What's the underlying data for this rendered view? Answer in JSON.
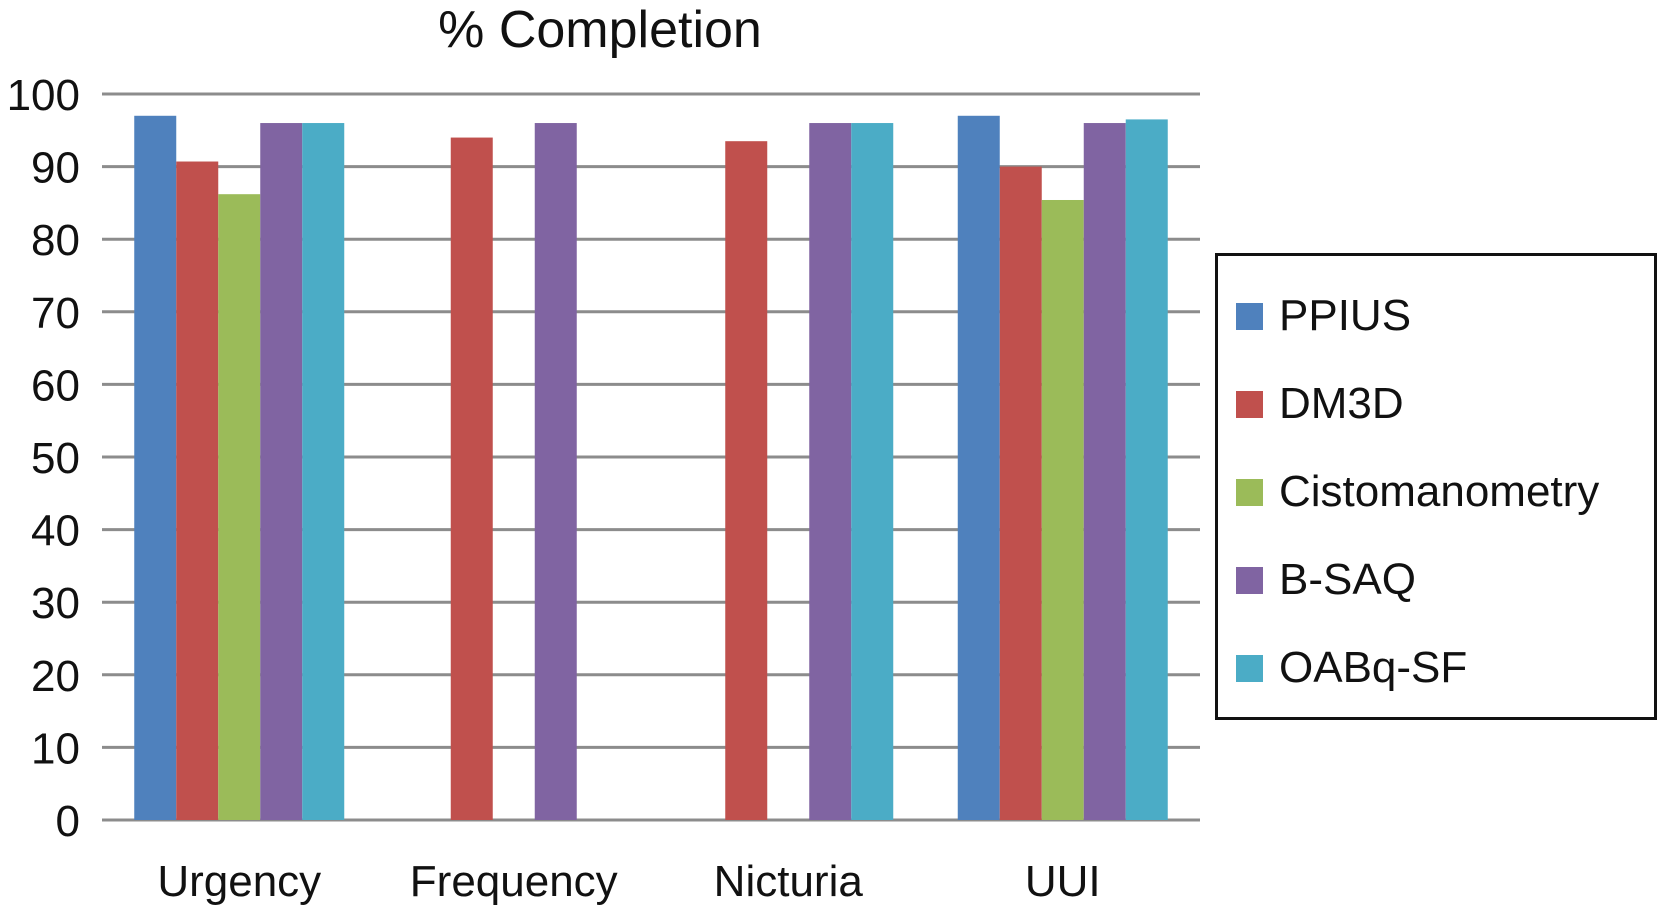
{
  "chart_data": {
    "type": "bar",
    "title": "% Completion",
    "xlabel": "",
    "ylabel": "",
    "ylim": [
      0,
      100
    ],
    "yticks": [
      0,
      10,
      20,
      30,
      40,
      50,
      60,
      70,
      80,
      90,
      100
    ],
    "grid": true,
    "legend_position": "right",
    "categories": [
      "Urgency",
      "Frequency",
      "Nicturia",
      "UUI"
    ],
    "series": [
      {
        "name": "PPIUS",
        "color": "#4F81BD",
        "values": [
          97,
          null,
          null,
          97
        ]
      },
      {
        "name": "DM3D",
        "color": "#C0504D",
        "values": [
          90.7,
          94,
          93.5,
          90
        ]
      },
      {
        "name": "Cistomanometry",
        "color": "#9BBB59",
        "values": [
          86.2,
          null,
          null,
          85.4
        ]
      },
      {
        "name": "B-SAQ",
        "color": "#8064A2",
        "values": [
          96,
          96,
          96,
          96
        ]
      },
      {
        "name": "OABq-SF",
        "color": "#4BACC6",
        "values": [
          96,
          null,
          96,
          96.5
        ]
      }
    ]
  }
}
